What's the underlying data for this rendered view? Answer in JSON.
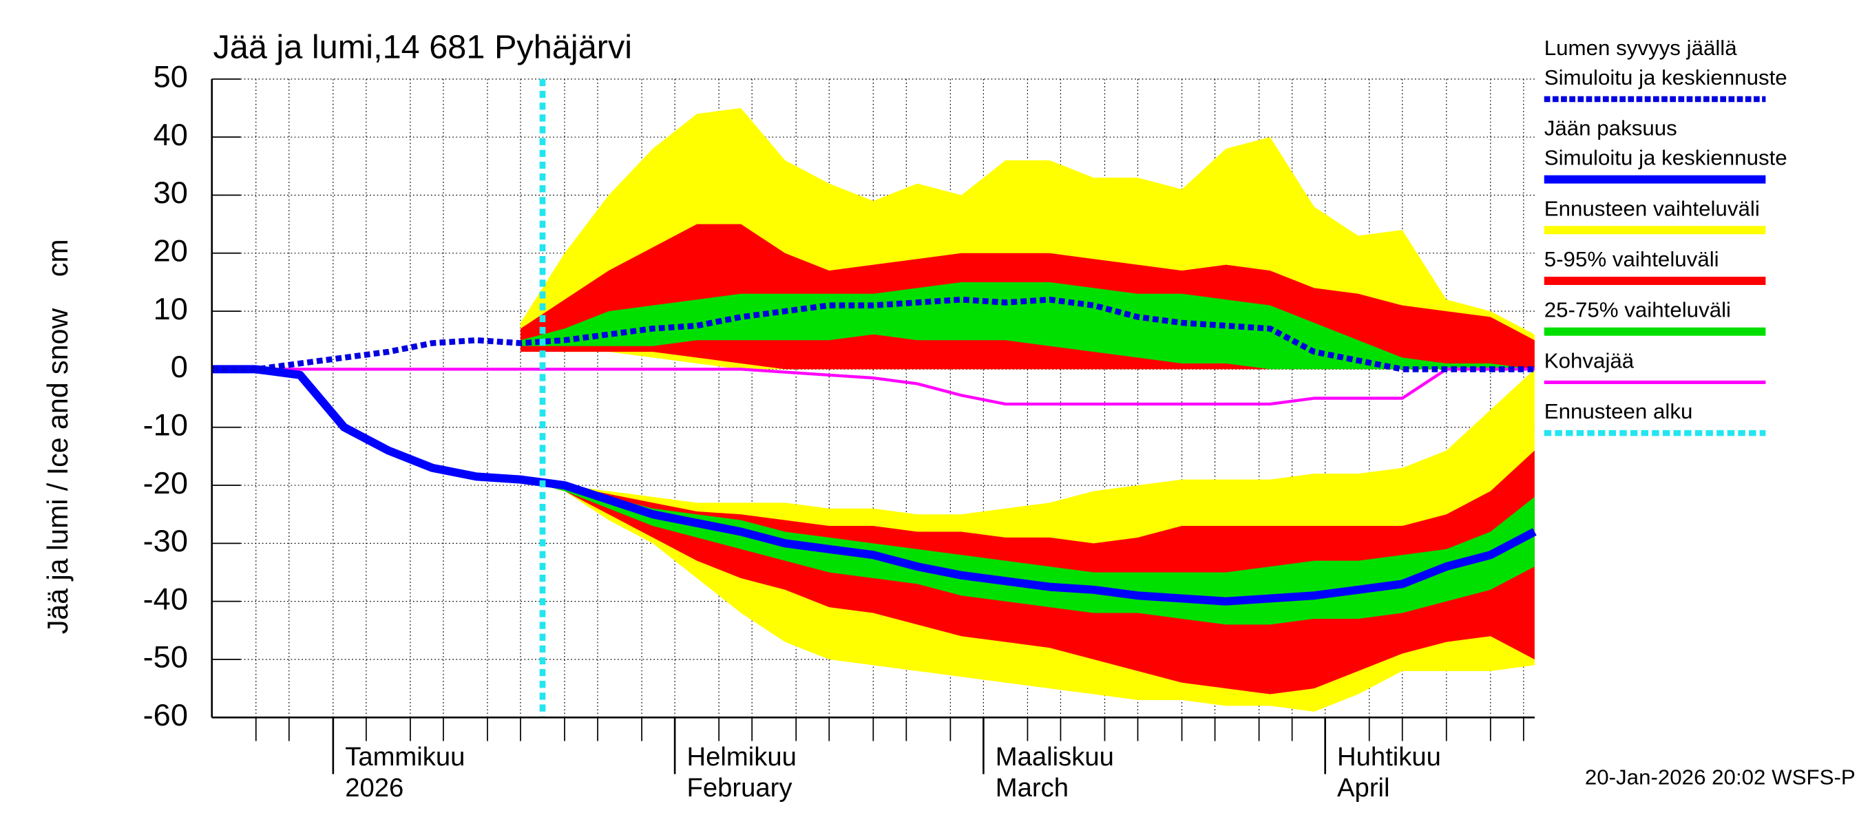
{
  "chart_data": {
    "type": "line",
    "title": "Jää ja lumi,14 681 Pyhäjärvi",
    "y_label": "Jää ja lumi / Ice and snow    cm",
    "footer": "20-Jan-2026 20:02 WSFS-P",
    "x": [
      0,
      4,
      8,
      12,
      16,
      20,
      24,
      28,
      32,
      36,
      40,
      44,
      48,
      52,
      56,
      60,
      64,
      68,
      72,
      76,
      80,
      84,
      88,
      92,
      96,
      100,
      104,
      108,
      112,
      116,
      120
    ],
    "xlim": [
      0,
      120
    ],
    "xticks": [
      {
        "value": 11,
        "label": "Tammikuu",
        "label2": "2026"
      },
      {
        "value": 42,
        "label": "Helmikuu",
        "label2": "February"
      },
      {
        "value": 70,
        "label": "Maaliskuu",
        "label2": "March"
      },
      {
        "value": 101,
        "label": "Huhtikuu",
        "label2": "April"
      }
    ],
    "minor_xticks": [
      4,
      7,
      14,
      18,
      21,
      25,
      28,
      32,
      35,
      39,
      46,
      49,
      53,
      56,
      60,
      63,
      67,
      74,
      77,
      81,
      84,
      88,
      91,
      95,
      98,
      105,
      108,
      112,
      116,
      119
    ],
    "ylim": [
      -60,
      50
    ],
    "yticks": [
      50,
      40,
      30,
      20,
      10,
      0,
      -10,
      -20,
      -30,
      -40,
      -50,
      -60
    ],
    "grid": true,
    "series": [
      {
        "name": "Lumen syvyys jäällä",
        "description": "Simuloitu ja keskiennuste",
        "color": "#0000e0",
        "dashed": true,
        "values": [
          0,
          0,
          1,
          2,
          3,
          4.5,
          5,
          4.5,
          5,
          6,
          7,
          7.5,
          9,
          10,
          11,
          11,
          11.5,
          12,
          11.5,
          12,
          11,
          9,
          8,
          7.5,
          7,
          3,
          1.5,
          0,
          0,
          0,
          0
        ]
      },
      {
        "name": "Jään paksuus",
        "description": "Simuloitu ja keskiennuste",
        "color": "#0000ff",
        "dashed": false,
        "values": [
          0,
          0,
          -1,
          -10,
          -14,
          -17,
          -18.5,
          -19,
          -20,
          -22.5,
          -25,
          -26.5,
          -28,
          -30,
          -31,
          -32,
          -34,
          -35.5,
          -36.5,
          -37.5,
          -38,
          -39,
          -39.5,
          -40,
          -39.5,
          -39,
          -38,
          -37,
          -34,
          -32,
          -28
        ]
      },
      {
        "name": "Kohvajää",
        "color": "#ff00ff",
        "dashed": false,
        "values": [
          0,
          0,
          0,
          0,
          0,
          0,
          0,
          0,
          0,
          0,
          0,
          0,
          0,
          -0.5,
          -1,
          -1.5,
          -2.5,
          -4.5,
          -6,
          -6,
          -6,
          -6,
          -6,
          -6,
          -6,
          -5,
          -5,
          -5,
          0,
          0,
          0
        ]
      }
    ],
    "bands": [
      {
        "name": "Ennusteen vaihteluväli",
        "color": "#ffff00",
        "snow_high": [
          null,
          null,
          null,
          null,
          null,
          null,
          null,
          8,
          20,
          30,
          38,
          44,
          45,
          36,
          32,
          29,
          32,
          30,
          36,
          36,
          33,
          33,
          31,
          38,
          40,
          28,
          23,
          24,
          12,
          10,
          6
        ],
        "snow_low": [
          null,
          null,
          null,
          null,
          null,
          null,
          null,
          4,
          3,
          3,
          2,
          1,
          0,
          0,
          0,
          0,
          0,
          0,
          0,
          0,
          0,
          0,
          0,
          0,
          0,
          0,
          0,
          0,
          0,
          0,
          0
        ],
        "ice_high": [
          null,
          null,
          null,
          null,
          null,
          null,
          null,
          -19,
          -20,
          -21,
          -22,
          -23,
          -23,
          -23,
          -24,
          -24,
          -25,
          -25,
          -24,
          -23,
          -21,
          -20,
          -19,
          -19,
          -19,
          -18,
          -18,
          -17,
          -14,
          -7,
          0
        ],
        "ice_low": [
          null,
          null,
          null,
          null,
          null,
          null,
          null,
          -19,
          -21,
          -26,
          -30,
          -36,
          -42,
          -47,
          -50,
          -51,
          -52,
          -53,
          -54,
          -55,
          -56,
          -57,
          -57,
          -58,
          -58,
          -59,
          -56,
          -52,
          -52,
          -52,
          -51
        ]
      },
      {
        "name": "5-95% vaihteluväli",
        "color": "#ff0000",
        "snow_high": [
          null,
          null,
          null,
          null,
          null,
          null,
          null,
          7,
          12,
          17,
          21,
          25,
          25,
          20,
          17,
          18,
          19,
          20,
          20,
          20,
          19,
          18,
          17,
          18,
          17,
          14,
          13,
          11,
          10,
          9,
          5
        ],
        "snow_low": [
          null,
          null,
          null,
          null,
          null,
          null,
          null,
          3,
          3,
          3,
          3,
          2,
          1,
          0,
          0,
          0,
          0,
          0,
          0,
          0,
          0,
          0,
          0,
          0,
          0,
          0,
          0,
          0,
          0,
          0,
          0
        ],
        "ice_high": [
          null,
          null,
          null,
          null,
          null,
          null,
          null,
          -19,
          -20,
          -21.5,
          -23,
          -24.5,
          -25,
          -26,
          -27,
          -27,
          -28,
          -28,
          -29,
          -29,
          -30,
          -29,
          -27,
          -27,
          -27,
          -27,
          -27,
          -27,
          -25,
          -21,
          -14
        ],
        "ice_low": [
          null,
          null,
          null,
          null,
          null,
          null,
          null,
          -19,
          -21,
          -25,
          -29,
          -33,
          -36,
          -38,
          -41,
          -42,
          -44,
          -46,
          -47,
          -48,
          -50,
          -52,
          -54,
          -55,
          -56,
          -55,
          -52,
          -49,
          -47,
          -46,
          -50
        ]
      },
      {
        "name": "25-75% vaihteluväli",
        "color": "#00e000",
        "snow_high": [
          null,
          null,
          null,
          null,
          null,
          null,
          null,
          5,
          7,
          10,
          11,
          12,
          13,
          13,
          13,
          13,
          14,
          15,
          15,
          15,
          14,
          13,
          13,
          12,
          11,
          8,
          5,
          2,
          1,
          1,
          0
        ],
        "snow_low": [
          null,
          null,
          null,
          null,
          null,
          null,
          null,
          4,
          4,
          4,
          4,
          5,
          5,
          5,
          5,
          6,
          5,
          5,
          5,
          4,
          3,
          2,
          1,
          1,
          0,
          0,
          0,
          0,
          0,
          0,
          0
        ],
        "ice_high": [
          null,
          null,
          null,
          null,
          null,
          null,
          null,
          -19,
          -20,
          -22,
          -24,
          -25,
          -26,
          -28,
          -29,
          -30,
          -31,
          -32,
          -33,
          -34,
          -35,
          -35,
          -35,
          -35,
          -34,
          -33,
          -33,
          -32,
          -31,
          -28,
          -22
        ],
        "ice_low": [
          null,
          null,
          null,
          null,
          null,
          null,
          null,
          -19,
          -21,
          -24,
          -27,
          -29,
          -31,
          -33,
          -35,
          -36,
          -37,
          -39,
          -40,
          -41,
          -42,
          -42,
          -43,
          -44,
          -44,
          -43,
          -43,
          -42,
          -40,
          -38,
          -34
        ]
      }
    ],
    "forecast_start": {
      "name": "Ennusteen alku",
      "color": "#22e5f0",
      "x": 30
    }
  }
}
